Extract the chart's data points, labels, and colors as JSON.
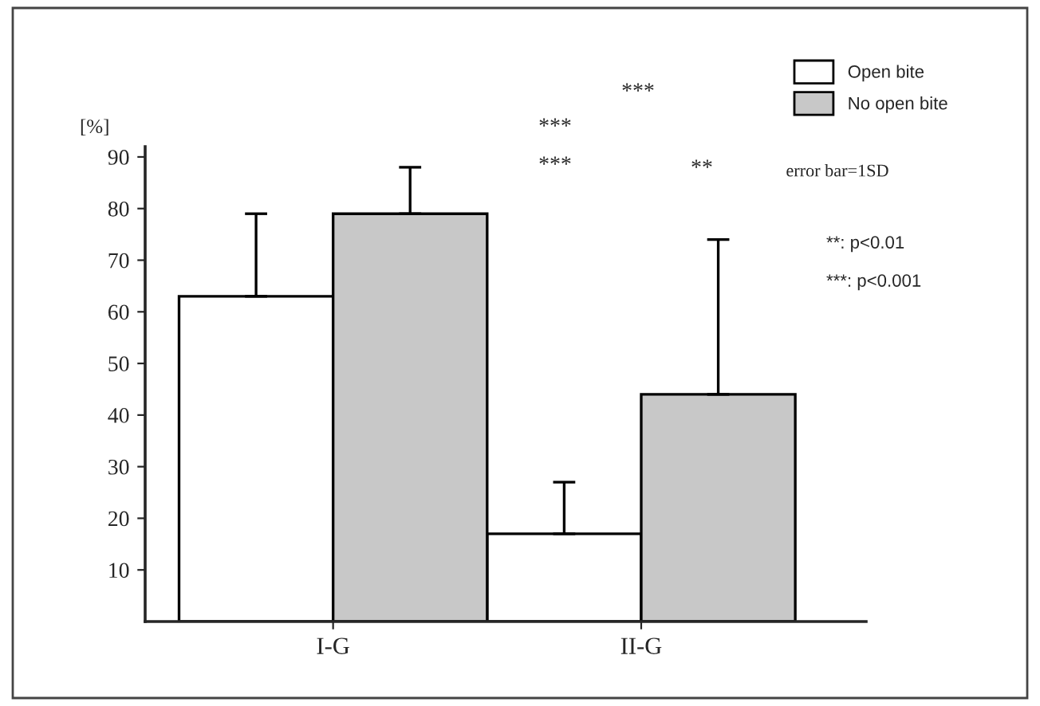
{
  "chart_data": {
    "type": "bar",
    "ylabel": "[%]",
    "categories": [
      "I-G",
      "II-G"
    ],
    "series": [
      {
        "name": "Open bite",
        "color": "#ffffff",
        "values": [
          63,
          17
        ],
        "errors": [
          16,
          10
        ]
      },
      {
        "name": "No open bite",
        "color": "#c8c8c8",
        "values": [
          79,
          44
        ],
        "errors": [
          9,
          30
        ]
      }
    ],
    "ylim": [
      0,
      92
    ],
    "yticks": [
      10,
      20,
      30,
      40,
      50,
      60,
      70,
      80,
      90
    ],
    "annotations": [
      "***",
      "***",
      "***",
      "**",
      "error bar=1SD",
      "**: p<0.01",
      "***: p<0.001"
    ],
    "legend": "top right",
    "grid": false
  }
}
